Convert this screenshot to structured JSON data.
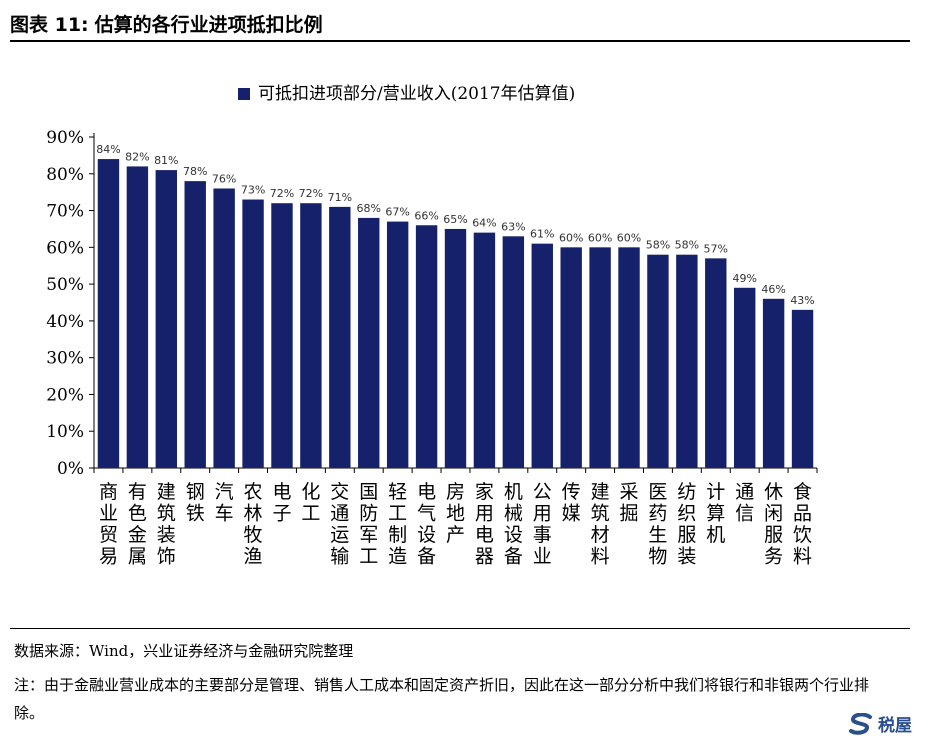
{
  "figure": {
    "label": "图表 11:",
    "title": "估算的各行业进项抵扣比例"
  },
  "chart_data": {
    "type": "bar",
    "legend": "可抵扣进项部分/营业收入(2017年估算值)",
    "legend_position": "top-center",
    "categories": [
      "商业贸易",
      "有色金属",
      "建筑装饰",
      "钢铁",
      "汽车",
      "农林牧渔",
      "电子",
      "化工",
      "交通运输",
      "国防军工",
      "轻工制造",
      "电气设备",
      "房地产",
      "家用电器",
      "机械设备",
      "公用事业",
      "传媒",
      "建筑材料",
      "采掘",
      "医药生物",
      "纺织服装",
      "计算机",
      "通信",
      "休闲服务",
      "食品饮料"
    ],
    "values": [
      84,
      82,
      81,
      78,
      76,
      73,
      72,
      72,
      71,
      68,
      67,
      66,
      65,
      64,
      63,
      61,
      60,
      60,
      60,
      58,
      58,
      57,
      49,
      46,
      43
    ],
    "value_labels": [
      "84%",
      "82%",
      "81%",
      "78%",
      "76%",
      "73%",
      "72%",
      "72%",
      "71%",
      "68%",
      "67%",
      "66%",
      "65%",
      "64%",
      "63%",
      "61%",
      "60%",
      "60%",
      "60%",
      "58%",
      "58%",
      "57%",
      "49%",
      "46%",
      "43%"
    ],
    "ylim": [
      0,
      90
    ],
    "yticks": [
      0,
      10,
      20,
      30,
      40,
      50,
      60,
      70,
      80,
      90
    ],
    "ytick_labels": [
      "0%",
      "10%",
      "20%",
      "30%",
      "40%",
      "50%",
      "60%",
      "70%",
      "80%",
      "90%"
    ],
    "grid": false,
    "bar_color": "#16216b"
  },
  "footer": {
    "source": "数据来源：Wind，兴业证券经济与金融研究院整理",
    "note": "注：由于金融业营业成本的主要部分是管理、销售人工成本和固定资产折旧，因此在这一部分分析中我们将银行和非银两个行业排除。"
  },
  "watermark": {
    "text": "税屋",
    "icon": "s-logo-icon",
    "color": "#2a4f8f"
  }
}
